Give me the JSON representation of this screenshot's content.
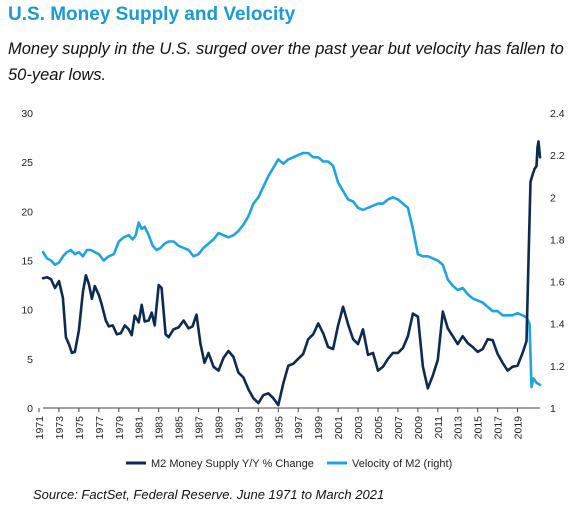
{
  "title": "U.S. Money Supply and Velocity",
  "subtitle": "Money supply in the U.S. surged over the past year but velocity has fallen to 50-year lows.",
  "source": "Source: FactSet, Federal Reserve. June 1971 to March 2021",
  "colors": {
    "title": "#1a9bd7",
    "m2": "#0d2a52",
    "velocity": "#1ea5e0",
    "axis": "#444444"
  },
  "chart_data": {
    "type": "line",
    "title": "U.S. Money Supply and Velocity",
    "xlabel": "",
    "ylabel_left": "",
    "ylabel_right": "",
    "x_ticks": [
      "1971",
      "1973",
      "1975",
      "1977",
      "1979",
      "1981",
      "1983",
      "1985",
      "1987",
      "1989",
      "1991",
      "1993",
      "1995",
      "1997",
      "1999",
      "2001",
      "2003",
      "2005",
      "2007",
      "2009",
      "2011",
      "2013",
      "2015",
      "2017",
      "2019"
    ],
    "xlim": [
      1971.4,
      2021.25
    ],
    "ylim_left": [
      0,
      30
    ],
    "y_ticks_left": [
      "0",
      "5",
      "10",
      "15",
      "20",
      "25",
      "30"
    ],
    "ylim_right": [
      1,
      2.4
    ],
    "y_ticks_right": [
      "1",
      "1.2",
      "1.4",
      "1.6",
      "1.8",
      "2",
      "2.2",
      "2.4"
    ],
    "legend": [
      "M2 Money Supply Y/Y % Change",
      "Velocity of M2 (right)"
    ],
    "legend_position": "bottom",
    "grid": false,
    "series": [
      {
        "name": "M2 Money Supply Y/Y % Change",
        "axis": "left",
        "x": [
          1971.4,
          1971.8,
          1972.2,
          1972.6,
          1973.0,
          1973.4,
          1973.7,
          1974.0,
          1974.3,
          1974.6,
          1975.0,
          1975.4,
          1975.7,
          1976.0,
          1976.3,
          1976.6,
          1977.0,
          1977.3,
          1977.7,
          1978.0,
          1978.4,
          1978.8,
          1979.2,
          1979.6,
          1980.0,
          1980.3,
          1980.6,
          1981.0,
          1981.3,
          1981.6,
          1982.0,
          1982.3,
          1982.6,
          1983.0,
          1983.3,
          1983.7,
          1984.0,
          1984.5,
          1985.0,
          1985.5,
          1986.0,
          1986.4,
          1986.8,
          1987.2,
          1987.6,
          1988.0,
          1988.5,
          1989.0,
          1989.5,
          1990.0,
          1990.5,
          1991.0,
          1991.5,
          1992.0,
          1992.5,
          1993.0,
          1993.5,
          1994.0,
          1994.5,
          1995.0,
          1995.5,
          1996.0,
          1996.5,
          1997.0,
          1997.5,
          1998.0,
          1998.5,
          1999.0,
          1999.5,
          2000.0,
          2000.5,
          2001.0,
          2001.5,
          2002.0,
          2002.5,
          2003.0,
          2003.5,
          2004.0,
          2004.5,
          2005.0,
          2005.5,
          2006.0,
          2006.5,
          2007.0,
          2007.5,
          2008.0,
          2008.5,
          2009.0,
          2009.5,
          2010.0,
          2010.5,
          2011.0,
          2011.5,
          2012.0,
          2012.5,
          2013.0,
          2013.5,
          2014.0,
          2014.5,
          2015.0,
          2015.5,
          2016.0,
          2016.5,
          2017.0,
          2017.5,
          2018.0,
          2018.5,
          2019.0,
          2019.5,
          2019.9,
          2020.1,
          2020.3,
          2020.5,
          2020.7,
          2020.9,
          2021.0,
          2021.1,
          2021.25
        ],
        "values": [
          13.2,
          13.3,
          13.1,
          12.2,
          12.9,
          11.2,
          7.2,
          6.5,
          5.6,
          5.7,
          7.9,
          11.8,
          13.5,
          12.6,
          11.1,
          12.4,
          11.5,
          10.5,
          8.9,
          8.3,
          8.4,
          7.5,
          7.6,
          8.4,
          8.0,
          7.4,
          9.4,
          8.7,
          10.5,
          8.8,
          8.9,
          9.7,
          8.4,
          12.5,
          12.2,
          7.5,
          7.2,
          8.0,
          8.2,
          8.9,
          8.1,
          8.3,
          9.5,
          6.5,
          4.6,
          5.6,
          4.2,
          3.8,
          5.1,
          5.8,
          5.2,
          3.6,
          3.1,
          1.9,
          1.0,
          0.5,
          1.3,
          1.5,
          1.0,
          0.3,
          2.5,
          4.3,
          4.5,
          5.0,
          5.5,
          7.0,
          7.5,
          8.6,
          7.6,
          6.2,
          6.0,
          8.4,
          10.3,
          8.5,
          7.0,
          6.5,
          8.0,
          5.4,
          5.6,
          3.8,
          4.2,
          5.0,
          5.6,
          5.6,
          6.1,
          7.3,
          9.6,
          9.3,
          4.2,
          2.0,
          3.3,
          4.9,
          9.8,
          8.1,
          7.3,
          6.5,
          7.3,
          6.6,
          6.2,
          5.7,
          6.0,
          7.0,
          6.9,
          5.5,
          4.6,
          3.8,
          4.2,
          4.3,
          5.6,
          6.8,
          15.0,
          23.0,
          23.7,
          24.3,
          24.6,
          26.5,
          27.1,
          25.5
        ]
      },
      {
        "name": "Velocity of M2 (right)",
        "axis": "right",
        "x": [
          1971.4,
          1971.8,
          1972.2,
          1972.6,
          1973.0,
          1973.4,
          1973.8,
          1974.2,
          1974.6,
          1975.0,
          1975.4,
          1975.8,
          1976.2,
          1976.6,
          1977.0,
          1977.5,
          1978.0,
          1978.5,
          1979.0,
          1979.5,
          1980.0,
          1980.4,
          1980.7,
          1981.0,
          1981.3,
          1981.6,
          1982.0,
          1982.4,
          1982.8,
          1983.2,
          1983.6,
          1984.0,
          1984.5,
          1985.0,
          1985.5,
          1986.0,
          1986.5,
          1987.0,
          1987.5,
          1988.0,
          1988.5,
          1989.0,
          1989.5,
          1990.0,
          1990.5,
          1991.0,
          1991.5,
          1992.0,
          1992.5,
          1993.0,
          1993.5,
          1994.0,
          1994.5,
          1995.0,
          1995.5,
          1996.0,
          1996.5,
          1997.0,
          1997.5,
          1998.0,
          1998.5,
          1999.0,
          1999.5,
          2000.0,
          2000.5,
          2001.0,
          2001.5,
          2002.0,
          2002.5,
          2003.0,
          2003.5,
          2004.0,
          2004.5,
          2005.0,
          2005.5,
          2006.0,
          2006.5,
          2007.0,
          2007.5,
          2008.0,
          2008.5,
          2009.0,
          2009.5,
          2010.0,
          2010.5,
          2011.0,
          2011.5,
          2012.0,
          2012.5,
          2013.0,
          2013.5,
          2014.0,
          2014.5,
          2015.0,
          2015.5,
          2016.0,
          2016.5,
          2017.0,
          2017.5,
          2018.0,
          2018.5,
          2019.0,
          2019.5,
          2019.9,
          2020.2,
          2020.4,
          2020.6,
          2020.9,
          2021.25
        ],
        "values": [
          1.74,
          1.71,
          1.7,
          1.68,
          1.69,
          1.72,
          1.74,
          1.75,
          1.73,
          1.74,
          1.72,
          1.75,
          1.75,
          1.74,
          1.73,
          1.7,
          1.72,
          1.73,
          1.79,
          1.81,
          1.82,
          1.8,
          1.82,
          1.88,
          1.85,
          1.86,
          1.82,
          1.77,
          1.75,
          1.76,
          1.78,
          1.79,
          1.79,
          1.77,
          1.76,
          1.75,
          1.72,
          1.73,
          1.76,
          1.78,
          1.8,
          1.83,
          1.82,
          1.81,
          1.82,
          1.84,
          1.87,
          1.91,
          1.97,
          2.0,
          2.05,
          2.1,
          2.14,
          2.18,
          2.16,
          2.18,
          2.19,
          2.2,
          2.21,
          2.21,
          2.19,
          2.19,
          2.17,
          2.17,
          2.15,
          2.07,
          2.03,
          1.99,
          1.98,
          1.95,
          1.94,
          1.95,
          1.96,
          1.97,
          1.97,
          1.99,
          2.0,
          1.99,
          1.97,
          1.95,
          1.85,
          1.73,
          1.72,
          1.72,
          1.71,
          1.7,
          1.68,
          1.61,
          1.58,
          1.56,
          1.57,
          1.54,
          1.52,
          1.51,
          1.5,
          1.48,
          1.46,
          1.46,
          1.44,
          1.44,
          1.44,
          1.45,
          1.44,
          1.43,
          1.4,
          1.1,
          1.14,
          1.12,
          1.11
        ]
      }
    ]
  }
}
